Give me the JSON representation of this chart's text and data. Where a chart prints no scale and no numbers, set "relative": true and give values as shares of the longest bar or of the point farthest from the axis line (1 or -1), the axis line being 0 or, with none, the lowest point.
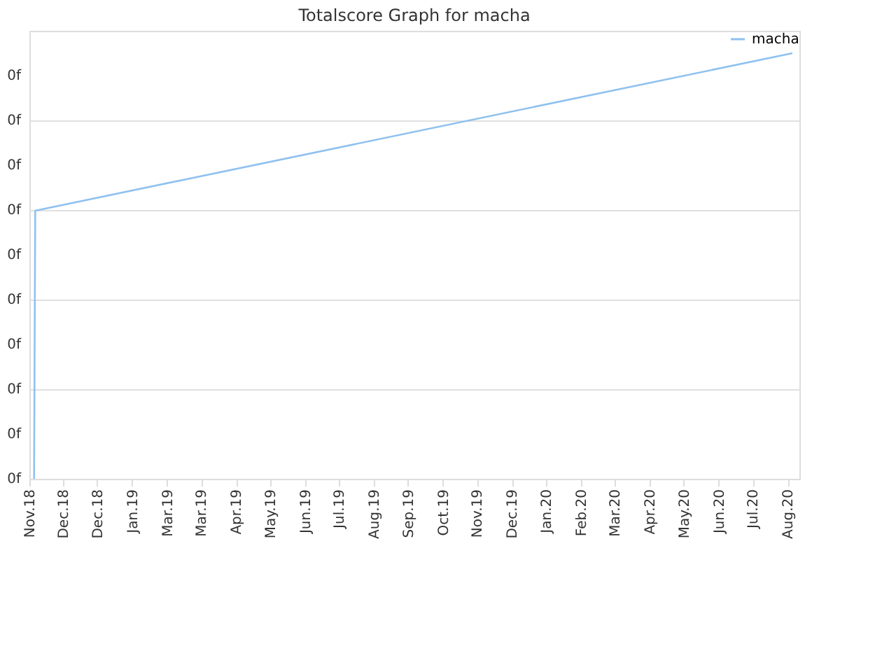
{
  "chart_data": {
    "type": "line",
    "title": "Totalscore Graph for macha",
    "x": [
      "2018-11-07",
      "2018-11-08",
      "2020-08-17"
    ],
    "series": [
      {
        "name": "macha",
        "color": "#8fc1ef",
        "values": [
          0,
          0.63,
          1
        ]
      }
    ],
    "relative": true,
    "xlim": [
      "2018-11-03",
      "2020-08-23"
    ],
    "xticks": [
      {
        "value": "2018-11-03",
        "label": "Nov.18"
      },
      {
        "value": "2018-12-02",
        "label": "Dec.18"
      },
      {
        "value": "2018-12-31",
        "label": "Dec.18"
      },
      {
        "value": "2019-01-30",
        "label": "Jan.19"
      },
      {
        "value": "2019-03-01",
        "label": "Mar.19"
      },
      {
        "value": "2019-03-30",
        "label": "Mar.19"
      },
      {
        "value": "2019-04-29",
        "label": "Apr.19"
      },
      {
        "value": "2019-05-28",
        "label": "May.19"
      },
      {
        "value": "2019-06-27",
        "label": "Jun.19"
      },
      {
        "value": "2019-07-26",
        "label": "Jul.19"
      },
      {
        "value": "2019-08-25",
        "label": "Aug.19"
      },
      {
        "value": "2019-09-23",
        "label": "Sep.19"
      },
      {
        "value": "2019-10-23",
        "label": "Oct.19"
      },
      {
        "value": "2019-11-21",
        "label": "Nov.19"
      },
      {
        "value": "2019-12-21",
        "label": "Dec.19"
      },
      {
        "value": "2020-01-19",
        "label": "Jan.20"
      },
      {
        "value": "2020-02-18",
        "label": "Feb.20"
      },
      {
        "value": "2020-03-18",
        "label": "Mar.20"
      },
      {
        "value": "2020-04-17",
        "label": "Apr.20"
      },
      {
        "value": "2020-05-16",
        "label": "May.20"
      },
      {
        "value": "2020-06-15",
        "label": "Jun.20"
      },
      {
        "value": "2020-07-14",
        "label": "Jul.20"
      },
      {
        "value": "2020-08-13",
        "label": "Aug.20"
      }
    ],
    "annotations": [
      "0f",
      "0f",
      "0f",
      "0f",
      "0f",
      "0f",
      "0f",
      "0f",
      "0f",
      "0f"
    ],
    "grid": "y",
    "legend": "top right",
    "marker": "none",
    "line_style": "solid"
  }
}
